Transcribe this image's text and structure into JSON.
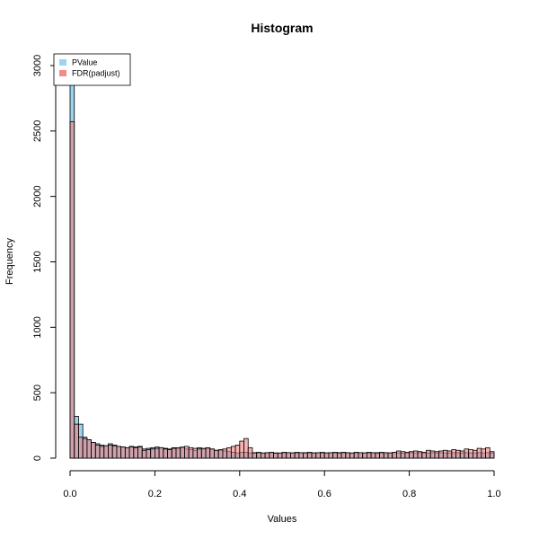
{
  "chart_data": {
    "type": "bar",
    "title": "Histogram",
    "xlabel": "Values",
    "ylabel": "Frequency",
    "xlim": [
      0,
      1
    ],
    "ylim": [
      0,
      3100
    ],
    "x_ticks": [
      "0.0",
      "0.2",
      "0.4",
      "0.6",
      "0.8",
      "1.0"
    ],
    "y_ticks": [
      "0",
      "500",
      "1000",
      "1500",
      "2000",
      "2500",
      "3000"
    ],
    "bin_width": 0.01,
    "legend_position": "top-left",
    "grid": false,
    "series": [
      {
        "name": "PValue",
        "color": "#87ceeb",
        "values": [
          3100,
          320,
          260,
          160,
          140,
          120,
          110,
          100,
          95,
          110,
          100,
          90,
          85,
          80,
          90,
          85,
          90,
          70,
          75,
          80,
          85,
          80,
          75,
          70,
          80,
          75,
          80,
          70,
          65,
          60,
          80,
          70,
          75,
          70,
          60,
          60,
          55,
          50,
          45,
          40,
          45,
          45,
          40,
          42,
          40,
          38,
          40,
          42,
          40,
          38,
          40,
          42,
          40,
          38,
          40,
          42,
          38,
          40,
          40,
          38,
          40,
          40,
          38,
          42,
          40,
          40,
          38,
          40,
          42,
          40,
          38,
          40,
          42,
          38,
          40,
          40,
          42,
          40,
          38,
          40,
          42,
          40,
          42,
          40,
          40,
          42,
          40,
          42,
          40,
          40,
          42,
          42,
          40,
          42,
          40,
          40,
          42,
          40,
          42,
          40
        ]
      },
      {
        "name": "FDR(padjust)",
        "color": "#f08080",
        "values": [
          2570,
          260,
          160,
          150,
          140,
          120,
          100,
          90,
          95,
          100,
          95,
          90,
          85,
          80,
          85,
          80,
          85,
          60,
          65,
          70,
          75,
          80,
          70,
          65,
          75,
          80,
          85,
          90,
          80,
          75,
          70,
          75,
          80,
          70,
          60,
          65,
          70,
          80,
          90,
          100,
          130,
          150,
          80,
          40,
          45,
          40,
          42,
          45,
          38,
          40,
          45,
          42,
          40,
          45,
          42,
          40,
          45,
          40,
          42,
          45,
          40,
          42,
          45,
          40,
          45,
          42,
          40,
          45,
          42,
          40,
          45,
          42,
          40,
          45,
          42,
          40,
          45,
          55,
          50,
          45,
          50,
          55,
          50,
          45,
          60,
          55,
          50,
          55,
          60,
          55,
          65,
          60,
          55,
          70,
          65,
          60,
          75,
          70,
          80,
          50
        ]
      }
    ]
  }
}
